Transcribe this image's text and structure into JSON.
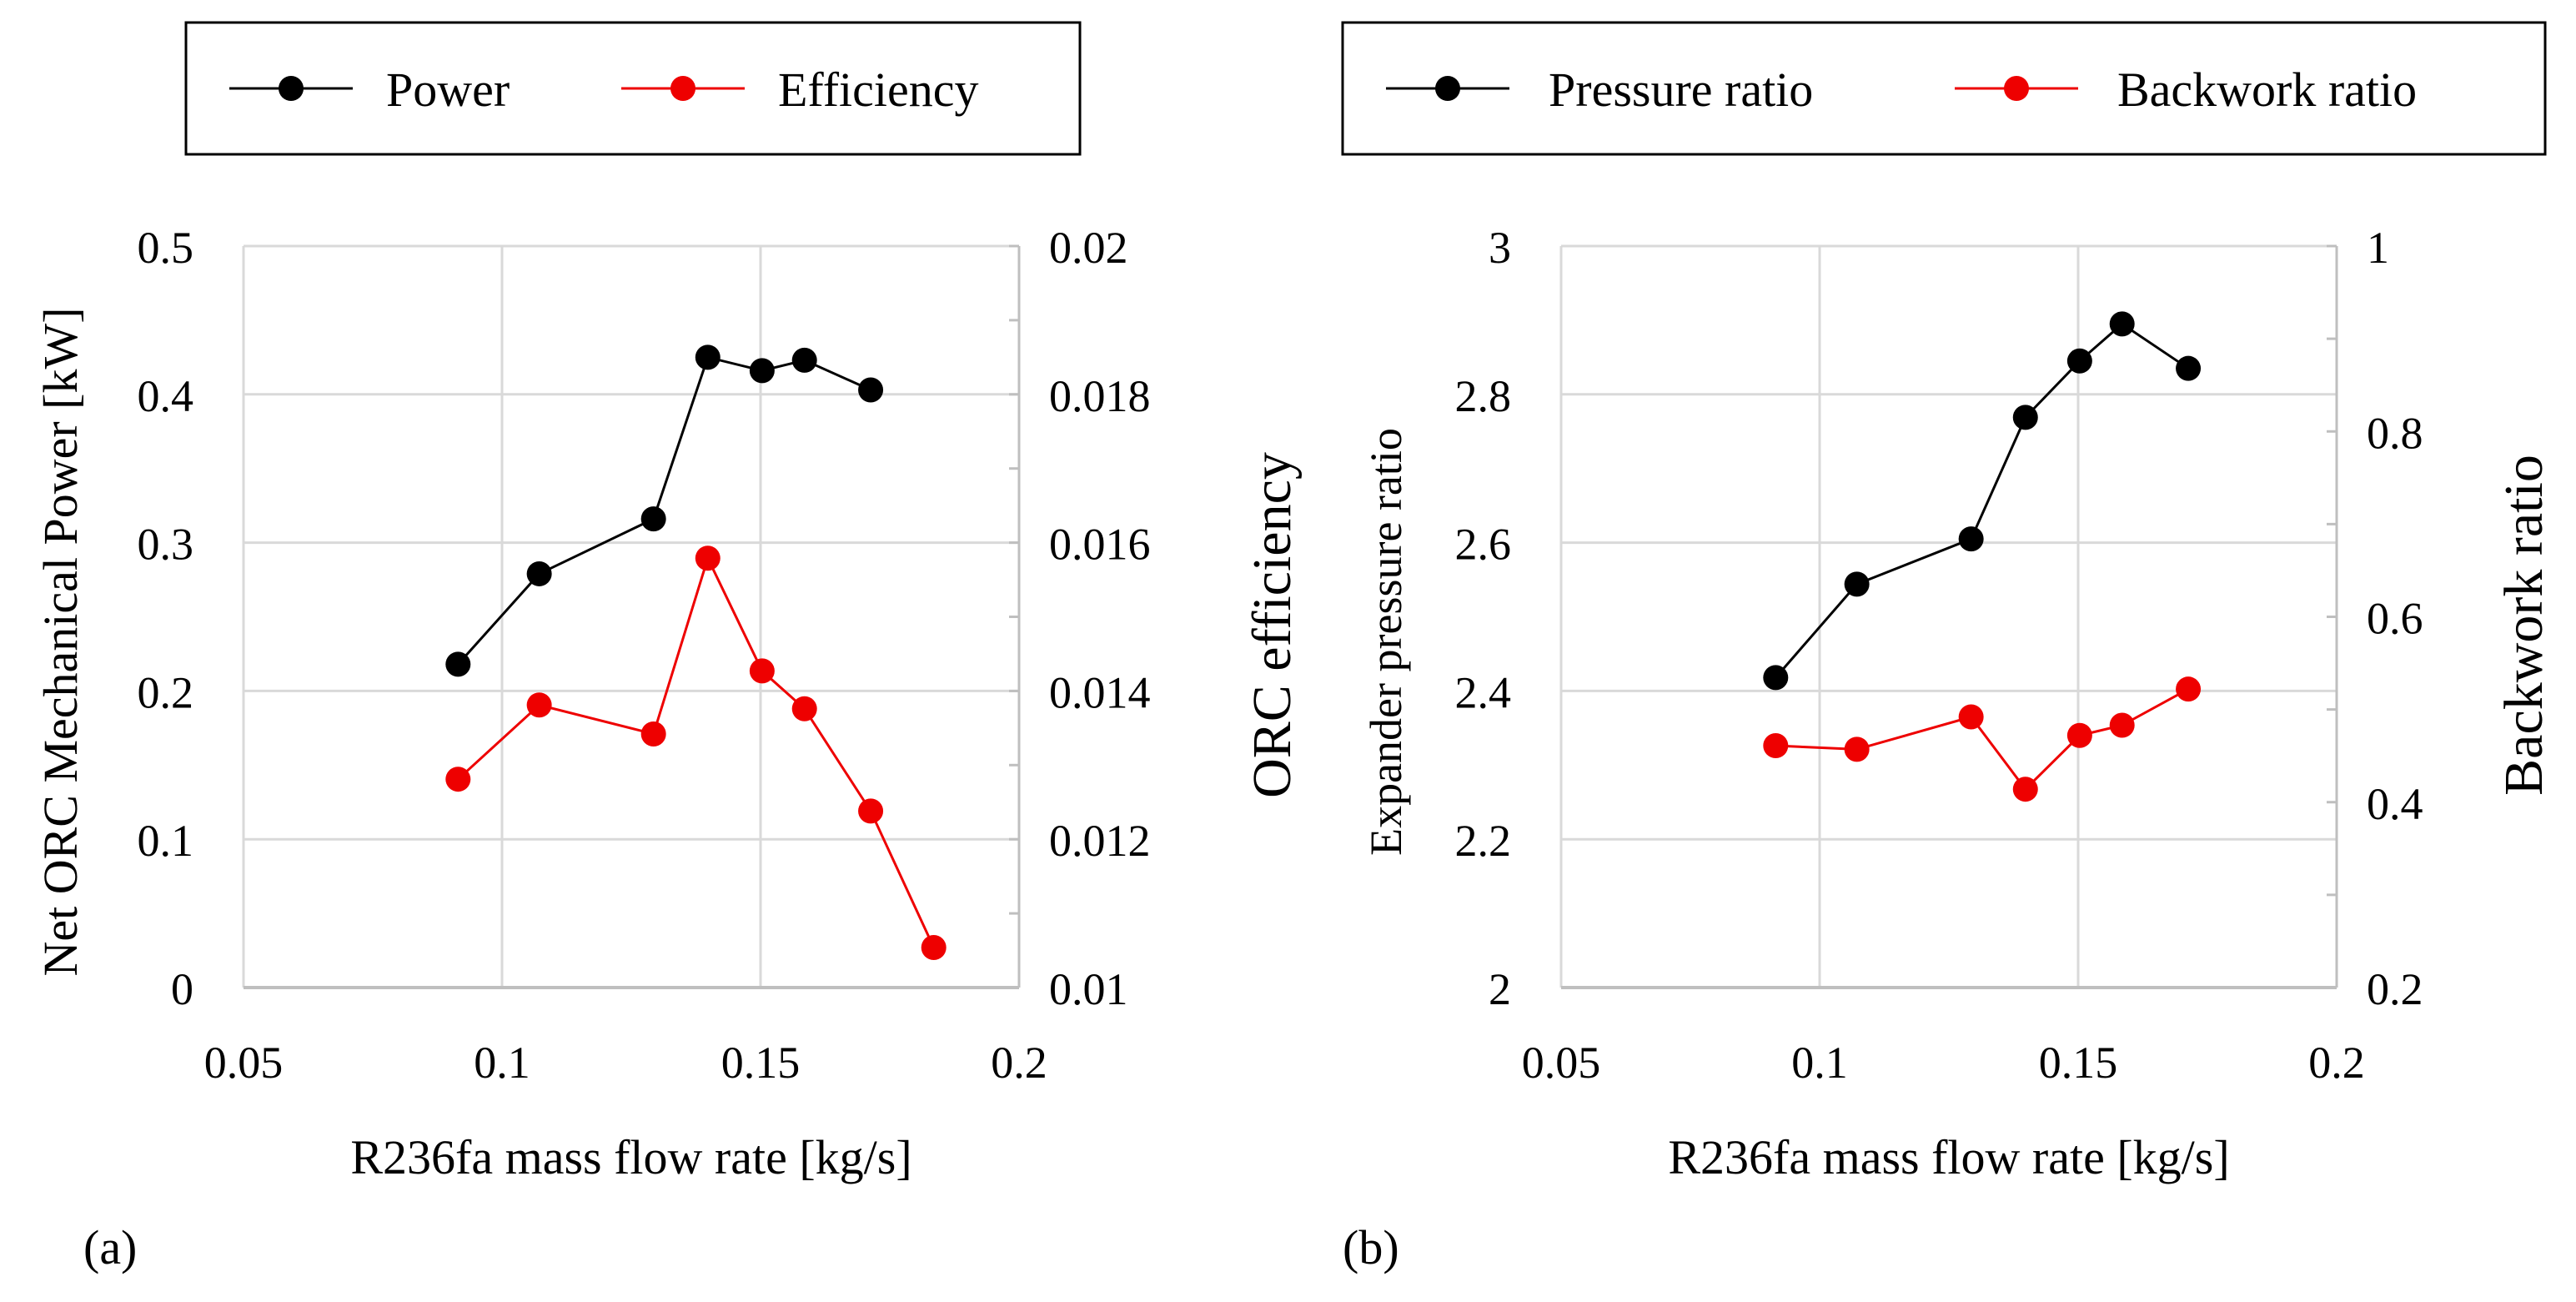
{
  "colors": {
    "series_a": "#000000",
    "series_b": "#ee0000",
    "grid": "#d9d9d9",
    "axis": "#bfbfbf"
  },
  "chart_data": [
    {
      "type": "line",
      "panel_label": "(a)",
      "title": "",
      "xlabel": "R236fa mass flow rate [kg/s]",
      "ylabel": "Net ORC Mechanical Power [kW]",
      "y2label": "ORC efficiency",
      "xlim": [
        0.05,
        0.2
      ],
      "ylim": [
        0,
        0.5
      ],
      "y2lim": [
        0.01,
        0.02
      ],
      "xticks": [
        "0.05",
        "0.1",
        "0.15",
        "0.2"
      ],
      "yticks": [
        "0",
        "0.1",
        "0.2",
        "0.3",
        "0.4",
        "0.5"
      ],
      "y2ticks": [
        "0.01",
        "0.012",
        "0.014",
        "0.016",
        "0.018",
        "0.02"
      ],
      "grid": true,
      "legend_position": "top",
      "series": [
        {
          "name": "Power",
          "axis": "left",
          "color": "#000000",
          "x": [
            0.0915,
            0.1072,
            0.1293,
            0.1398,
            0.1503,
            0.1585,
            0.1713
          ],
          "y": [
            0.218,
            0.279,
            0.316,
            0.425,
            0.416,
            0.423,
            0.403
          ]
        },
        {
          "name": "Efficiency",
          "axis": "right",
          "color": "#ee0000",
          "x": [
            0.0915,
            0.1072,
            0.1293,
            0.1398,
            0.1503,
            0.1585,
            0.1713,
            0.1835
          ],
          "y": [
            0.01281,
            0.01381,
            0.01342,
            0.01579,
            0.01427,
            0.01376,
            0.01238,
            0.01054
          ]
        }
      ]
    },
    {
      "type": "line",
      "panel_label": "(b)",
      "title": "",
      "xlabel": "R236fa mass flow rate [kg/s]",
      "ylabel": "Expander pressure ratio",
      "y2label": "Backwork ratio",
      "xlim": [
        0.05,
        0.2
      ],
      "ylim": [
        2,
        3
      ],
      "y2lim": [
        0.2,
        1
      ],
      "xticks": [
        "0.05",
        "0.1",
        "0.15",
        "0.2"
      ],
      "yticks": [
        "2",
        "2.2",
        "2.4",
        "2.6",
        "2.8",
        "3"
      ],
      "y2ticks": [
        "0.2",
        "0.4",
        "0.6",
        "0.8",
        "1"
      ],
      "grid": true,
      "legend_position": "top",
      "series": [
        {
          "name": "Pressure ratio",
          "axis": "left",
          "color": "#000000",
          "x": [
            0.0915,
            0.1072,
            0.1293,
            0.1398,
            0.1503,
            0.1585,
            0.1713
          ],
          "y": [
            2.418,
            2.544,
            2.605,
            2.769,
            2.845,
            2.895,
            2.835
          ]
        },
        {
          "name": "Backwork ratio",
          "axis": "right",
          "color": "#ee0000",
          "x": [
            0.0915,
            0.1072,
            0.1293,
            0.1398,
            0.1503,
            0.1585,
            0.1713
          ],
          "y": [
            0.461,
            0.457,
            0.492,
            0.414,
            0.472,
            0.483,
            0.522
          ]
        }
      ]
    }
  ]
}
